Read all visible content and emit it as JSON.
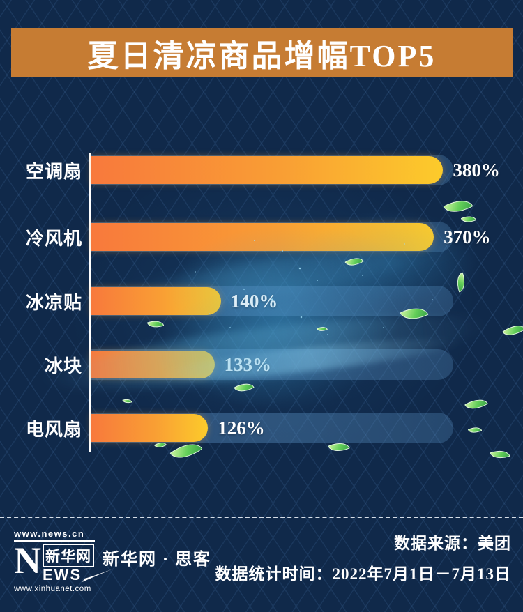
{
  "title": {
    "text": "夏日清凉商品增幅TOP5"
  },
  "chart_data": {
    "type": "bar",
    "orientation": "horizontal",
    "title": "夏日清凉商品增幅TOP5",
    "value_unit": "%",
    "categories": [
      "空调扇",
      "冷风机",
      "冰凉贴",
      "冰块",
      "电风扇"
    ],
    "values": [
      380,
      370,
      140,
      133,
      126
    ],
    "items": [
      {
        "label": "空调扇",
        "value": 380,
        "display": "380%"
      },
      {
        "label": "冷风机",
        "value": 370,
        "display": "370%"
      },
      {
        "label": "冰凉贴",
        "value": 140,
        "display": "140%"
      },
      {
        "label": "冰块",
        "value": 133,
        "display": "133%"
      },
      {
        "label": "电风扇",
        "value": 126,
        "display": "126%"
      }
    ],
    "xlim": [
      0,
      391
    ],
    "grid": false,
    "legend": false,
    "bar_color_start": "#F8793C",
    "bar_color_end": "#FCCB2B",
    "track_color": "#2C5078",
    "label_color": "#FFFFFF"
  },
  "footer": {
    "logo": {
      "url_top": "www.news.cn",
      "n_letter": "N",
      "cn_name": "新华网",
      "ews": "EWS",
      "url_bottom": "www.xinhuanet.com"
    },
    "brand": "新华网 · 思客",
    "source": "数据来源：美团",
    "period": "数据统计时间：2022年7月1日－7月13日"
  },
  "colors": {
    "background": "#10294A",
    "title_banner": "#C67C33",
    "text": "#FFFFFF",
    "leaf": "#62CE58"
  }
}
